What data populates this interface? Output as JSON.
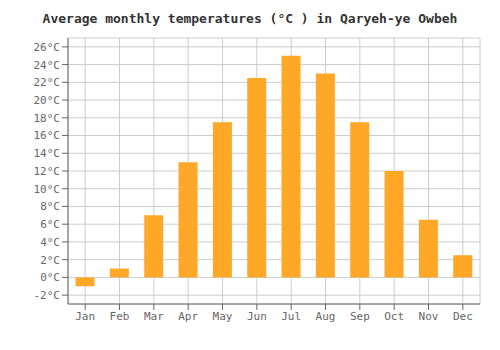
{
  "chart_data": {
    "type": "bar",
    "title": "Average monthly temperatures (°C ) in Qaryeh-ye Owbeh",
    "categories": [
      "Jan",
      "Feb",
      "Mar",
      "Apr",
      "May",
      "Jun",
      "Jul",
      "Aug",
      "Sep",
      "Oct",
      "Nov",
      "Dec"
    ],
    "values": [
      -1.0,
      1.0,
      7.0,
      13.0,
      17.5,
      22.5,
      25.0,
      23.0,
      17.5,
      12.0,
      6.5,
      2.5
    ],
    "color": "#FFA726",
    "ylim": [
      -3,
      27
    ],
    "yticks": [
      {
        "value": -2,
        "label": "-2°C"
      },
      {
        "value": 0,
        "label": "0°C"
      },
      {
        "value": 2,
        "label": "2°C"
      },
      {
        "value": 4,
        "label": "4°C"
      },
      {
        "value": 6,
        "label": "6°C"
      },
      {
        "value": 8,
        "label": "8°C"
      },
      {
        "value": 10,
        "label": "10°C"
      },
      {
        "value": 12,
        "label": "12°C"
      },
      {
        "value": 14,
        "label": "14°C"
      },
      {
        "value": 16,
        "label": "16°C"
      },
      {
        "value": 18,
        "label": "18°C"
      },
      {
        "value": 20,
        "label": "20°C"
      },
      {
        "value": 22,
        "label": "22°C"
      },
      {
        "value": 24,
        "label": "24°C"
      },
      {
        "value": 26,
        "label": "26°C"
      }
    ],
    "grid": true
  }
}
